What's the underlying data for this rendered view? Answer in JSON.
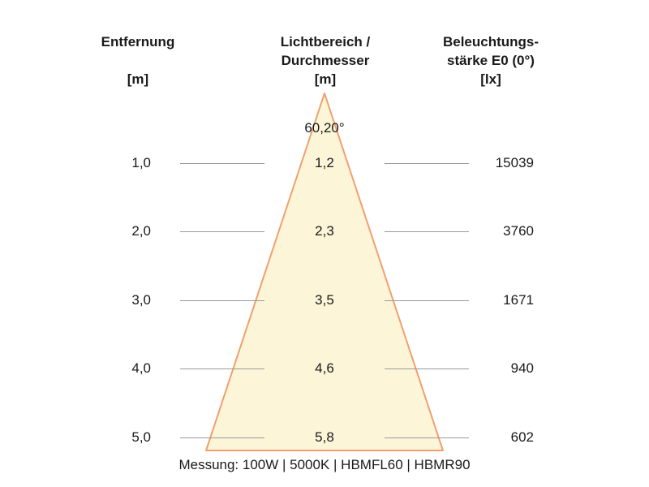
{
  "headers": {
    "left": [
      "Entfernung",
      "",
      "[m]"
    ],
    "middle": [
      "Lichtbereich /",
      "Durchmesser",
      "[m]"
    ],
    "right": [
      "Beleuchtungs-",
      "stärke E0 (0°)",
      "[lx]"
    ]
  },
  "beam_angle": "60,20°",
  "rows": [
    {
      "distance": "1,0",
      "diameter": "1,2",
      "lux": "15039"
    },
    {
      "distance": "2,0",
      "diameter": "2,3",
      "lux": "3760"
    },
    {
      "distance": "3,0",
      "diameter": "3,5",
      "lux": "1671"
    },
    {
      "distance": "4,0",
      "diameter": "4,6",
      "lux": "940"
    },
    {
      "distance": "5,0",
      "diameter": "5,8",
      "lux": "602"
    }
  ],
  "footer": "Messung: 100W | 5000K | HBMFL60 | HBMR90",
  "colors": {
    "cone_fill": "#fcf5d8",
    "cone_stroke": "#f0a070",
    "guide_line": "#9a9a9a"
  }
}
